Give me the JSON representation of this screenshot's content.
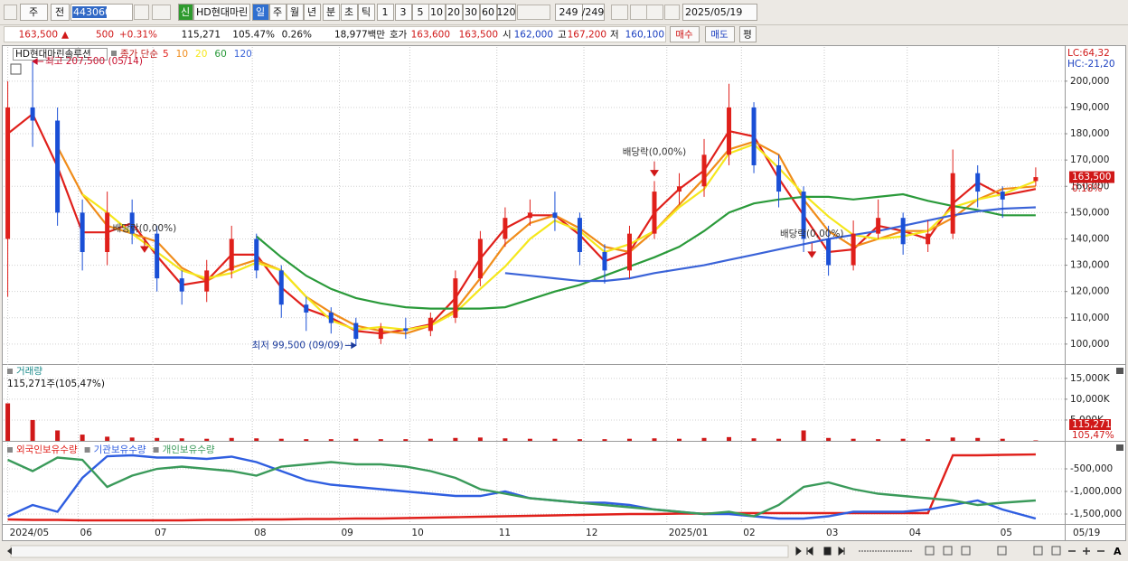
{
  "toolbar": {
    "row1": [
      "주",
      "전",
      "443060",
      "신",
      "HD현대마린",
      "일",
      "주",
      "월",
      "년",
      "분",
      "초",
      "틱",
      "1",
      "3",
      "5",
      "10",
      "20",
      "30",
      "60",
      "120",
      "249",
      "/249",
      "2025/05/19"
    ],
    "row2": [
      "163,500",
      "▲",
      "500",
      "+0.31%",
      "115,271",
      "105.47%",
      "0.26%",
      "18,977백만",
      "호가",
      "163,600",
      "163,500",
      "시",
      "162,000",
      "고",
      "167,200",
      "저",
      "160,100",
      "매수",
      "매도",
      "평"
    ],
    "font_button": "A"
  },
  "chart_data": [
    {
      "type": "candlestick",
      "title": "HD현대마린솔루션",
      "legend_title": "종가 단순",
      "x": [
        0,
        6,
        12,
        18,
        24,
        30,
        36,
        42,
        48,
        54,
        60,
        66,
        72,
        78,
        84,
        90,
        96,
        102,
        108,
        114,
        120,
        126,
        132,
        138,
        144,
        150,
        156,
        162,
        168,
        174,
        180,
        186,
        192,
        198,
        204,
        210,
        216,
        222,
        228,
        234,
        240,
        248
      ],
      "open": [
        140000,
        190000,
        185000,
        150000,
        135000,
        150000,
        142000,
        125000,
        120000,
        128000,
        140000,
        128000,
        115000,
        112000,
        108000,
        102000,
        106000,
        105000,
        110000,
        125000,
        140000,
        148000,
        150000,
        148000,
        135000,
        128000,
        142000,
        158000,
        160000,
        172000,
        190000,
        168000,
        158000,
        140000,
        130000,
        142000,
        148000,
        138000,
        142000,
        165000,
        158000,
        162000
      ],
      "high": [
        200000,
        207500,
        190000,
        155000,
        158000,
        155000,
        145000,
        128000,
        132000,
        145000,
        142000,
        130000,
        118000,
        114000,
        110000,
        108000,
        110000,
        112000,
        128000,
        143000,
        152000,
        155000,
        158000,
        150000,
        138000,
        145000,
        162000,
        165000,
        178000,
        199000,
        192000,
        172000,
        160000,
        145000,
        147000,
        155000,
        150000,
        147000,
        174000,
        168000,
        160000,
        167200
      ],
      "low": [
        118000,
        175000,
        145000,
        128000,
        130000,
        138000,
        120000,
        115000,
        116000,
        125000,
        125000,
        110000,
        105000,
        104000,
        99500,
        100000,
        102000,
        103000,
        108000,
        122000,
        137000,
        145000,
        143000,
        130000,
        123000,
        125000,
        140000,
        153000,
        156000,
        168000,
        165000,
        152000,
        135000,
        126000,
        128000,
        140000,
        134000,
        135000,
        140000,
        152000,
        148000,
        160100
      ],
      "close": [
        190000,
        185000,
        150000,
        135000,
        150000,
        142000,
        125000,
        120000,
        128000,
        140000,
        128000,
        115000,
        112000,
        108000,
        102000,
        106000,
        105000,
        110000,
        125000,
        140000,
        148000,
        150000,
        148000,
        135000,
        128000,
        142000,
        158000,
        160000,
        172000,
        190000,
        168000,
        158000,
        140000,
        130000,
        142000,
        148000,
        138000,
        142000,
        165000,
        158000,
        155000,
        163500
      ],
      "up_color": "#e0201b",
      "down_color": "#1a4fd6",
      "series": [
        {
          "name": "5",
          "color": "#e0201b",
          "values": [
            180000,
            187500,
            167500,
            142500,
            142500,
            146000,
            133500,
            122500,
            124000,
            134000,
            134000,
            121500,
            113500,
            110000,
            105000,
            104000,
            105500,
            107500,
            117500,
            132500,
            144000,
            149000,
            149000,
            141500,
            131500,
            135000,
            150000,
            159000,
            166000,
            181000,
            179000,
            163000,
            149000,
            135000,
            136000,
            145000,
            143000,
            140000,
            153500,
            161500,
            156500,
            159000
          ]
        },
        {
          "name": "10",
          "color": "#f08c1a",
          "values": [
            null,
            null,
            175000,
            157000,
            145000,
            142000,
            139000,
            129000,
            124000,
            129000,
            132000,
            128000,
            118000,
            112000,
            107000,
            105000,
            104000,
            107000,
            113000,
            125000,
            138000,
            146000,
            149000,
            144000,
            137000,
            135000,
            143000,
            153000,
            163000,
            174000,
            177000,
            172000,
            155000,
            143000,
            137000,
            140000,
            143000,
            143000,
            148000,
            155000,
            159000,
            160000
          ]
        },
        {
          "name": "20",
          "color": "#f5e71c",
          "values": [
            null,
            null,
            null,
            157000,
            150000,
            142000,
            135000,
            128000,
            125000,
            127000,
            131000,
            128000,
            118000,
            109000,
            105500,
            106500,
            105500,
            107000,
            112000,
            121000,
            129500,
            140000,
            147000,
            143000,
            135000,
            138000,
            143000,
            152000,
            159000,
            172500,
            176000,
            167000,
            157000,
            148500,
            141500,
            140000,
            141000,
            143000,
            152000,
            155000,
            157000,
            162000
          ]
        },
        {
          "name": "60",
          "color": "#2a9a3a",
          "values": [
            null,
            null,
            null,
            null,
            null,
            null,
            null,
            null,
            null,
            null,
            141000,
            133000,
            126000,
            121000,
            117500,
            115500,
            114000,
            113500,
            113500,
            113500,
            114000,
            117000,
            120000,
            122500,
            126000,
            129500,
            133000,
            137000,
            143000,
            150000,
            153500,
            155000,
            156000,
            156000,
            155000,
            156000,
            157000,
            154500,
            152500,
            151000,
            149000,
            149000
          ]
        },
        {
          "name": "120",
          "color": "#3a63d8",
          "values": [
            null,
            null,
            null,
            null,
            null,
            null,
            null,
            null,
            null,
            null,
            null,
            null,
            null,
            null,
            null,
            null,
            null,
            null,
            null,
            null,
            127000,
            126000,
            125000,
            124000,
            124000,
            125000,
            127000,
            128500,
            130000,
            132000,
            134000,
            136000,
            138000,
            140000,
            141500,
            143000,
            145000,
            147000,
            149000,
            150500,
            151500,
            152000
          ]
        }
      ],
      "xlim": [
        -1,
        255
      ],
      "xticks": [
        {
          "value": 0,
          "label": "2024/05"
        },
        {
          "value": 17,
          "label": "06"
        },
        {
          "value": 35,
          "label": "07"
        },
        {
          "value": 59,
          "label": "08"
        },
        {
          "value": 80,
          "label": "09"
        },
        {
          "value": 97,
          "label": "10"
        },
        {
          "value": 118,
          "label": "11"
        },
        {
          "value": 139,
          "label": "12"
        },
        {
          "value": 159,
          "label": "2025/01"
        },
        {
          "value": 177,
          "label": "02"
        },
        {
          "value": 197,
          "label": "03"
        },
        {
          "value": 217,
          "label": "04"
        },
        {
          "value": 239,
          "label": "05"
        }
      ],
      "last_date": "05/19",
      "ylim": [
        92400,
        213000
      ],
      "yticks": [
        {
          "value": 100000,
          "label": "100,000"
        },
        {
          "value": 110000,
          "label": "110,000"
        },
        {
          "value": 120000,
          "label": "120,000"
        },
        {
          "value": 130000,
          "label": "130,000"
        },
        {
          "value": 140000,
          "label": "140,000"
        },
        {
          "value": 150000,
          "label": "150,000"
        },
        {
          "value": 160000,
          "label": "160,000"
        },
        {
          "value": 170000,
          "label": "170,000"
        },
        {
          "value": 180000,
          "label": "180,000"
        },
        {
          "value": 190000,
          "label": "190,000"
        },
        {
          "value": 200000,
          "label": "200,000"
        }
      ],
      "grid": true,
      "annotations": [
        {
          "text": "최고 207,500 (05/14)",
          "x": 6,
          "y": 207500,
          "arrow": "left",
          "color": "#c8102e"
        },
        {
          "text": "최저 99,500 (09/09)",
          "x": 84,
          "y": 99500,
          "arrow": "right",
          "color": "#1a3a9c"
        },
        {
          "text": "배당락(0,00%)",
          "x": 33,
          "y": 135000,
          "arrow": "down",
          "color": "#333333"
        },
        {
          "text": "배당락(0,00%)",
          "x": 156,
          "y": 164000,
          "arrow": "down",
          "color": "#333333"
        },
        {
          "text": "배당락(0,00%)",
          "x": 194,
          "y": 133000,
          "arrow": "down",
          "color": "#333333"
        }
      ],
      "price_tag": {
        "value": 163500,
        "label": "163,500"
      },
      "change_label": "0.18%",
      "lc_label": "LC:64,32",
      "hc_label": "HC:-21,20"
    },
    {
      "type": "bar",
      "title": "거래량",
      "subtitle": "115,271주(105,47%)",
      "color": "#d01818",
      "values": [
        9000,
        5000,
        2500,
        1500,
        1000,
        800,
        700,
        600,
        500,
        700,
        600,
        500,
        400,
        400,
        500,
        400,
        400,
        500,
        700,
        800,
        600,
        500,
        500,
        400,
        400,
        500,
        600,
        500,
        700,
        900,
        600,
        500,
        2500,
        700,
        500,
        400,
        500,
        400,
        800,
        700,
        500,
        115.271
      ],
      "ylim": [
        0,
        18000
      ],
      "yticks": [
        {
          "value": 5000,
          "label": "5,000K"
        },
        {
          "value": 10000,
          "label": "10,000K"
        },
        {
          "value": 15000,
          "label": "15,000K"
        }
      ],
      "last_labels": [
        "115,271",
        "105,47%"
      ]
    },
    {
      "type": "line",
      "series": [
        {
          "name": "외국인보유수량",
          "color": "#e0201b",
          "values": [
            -1620000,
            -1630000,
            -1630000,
            -1640000,
            -1640000,
            -1640000,
            -1640000,
            -1640000,
            -1630000,
            -1630000,
            -1620000,
            -1620000,
            -1610000,
            -1610000,
            -1600000,
            -1600000,
            -1590000,
            -1580000,
            -1570000,
            -1560000,
            -1550000,
            -1540000,
            -1530000,
            -1520000,
            -1510000,
            -1500000,
            -1500000,
            -1490000,
            -1490000,
            -1480000,
            -1480000,
            -1480000,
            -1480000,
            -1480000,
            -1480000,
            -1480000,
            -1480000,
            -1480000,
            -200000,
            -200000,
            -190000,
            -180000
          ]
        },
        {
          "name": "기관보유수량",
          "color": "#2f5ee0",
          "values": [
            -1550000,
            -1300000,
            -1450000,
            -700000,
            -220000,
            -200000,
            -250000,
            -250000,
            -280000,
            -230000,
            -350000,
            -550000,
            -750000,
            -850000,
            -900000,
            -950000,
            -1000000,
            -1050000,
            -1100000,
            -1100000,
            -1000000,
            -1150000,
            -1200000,
            -1250000,
            -1250000,
            -1300000,
            -1400000,
            -1450000,
            -1500000,
            -1500000,
            -1550000,
            -1600000,
            -1600000,
            -1550000,
            -1450000,
            -1450000,
            -1450000,
            -1400000,
            -1300000,
            -1200000,
            -1400000,
            -1600000
          ]
        },
        {
          "name": "개인보유수량",
          "color": "#3a9a5a",
          "values": [
            -300000,
            -550000,
            -250000,
            -300000,
            -900000,
            -650000,
            -500000,
            -450000,
            -500000,
            -550000,
            -650000,
            -450000,
            -400000,
            -350000,
            -400000,
            -400000,
            -450000,
            -550000,
            -700000,
            -950000,
            -1050000,
            -1150000,
            -1200000,
            -1250000,
            -1300000,
            -1350000,
            -1400000,
            -1450000,
            -1500000,
            -1450000,
            -1550000,
            -1300000,
            -900000,
            -800000,
            -950000,
            -1050000,
            -1100000,
            -1150000,
            -1200000,
            -1300000,
            -1250000,
            -1200000
          ]
        }
      ],
      "ylim": [
        -1720000,
        80000
      ],
      "yticks": [
        {
          "value": -500000,
          "label": "-500,000"
        },
        {
          "value": -1000000,
          "label": "-1,000,000"
        },
        {
          "value": -1500000,
          "label": "-1,500,000"
        }
      ]
    }
  ]
}
